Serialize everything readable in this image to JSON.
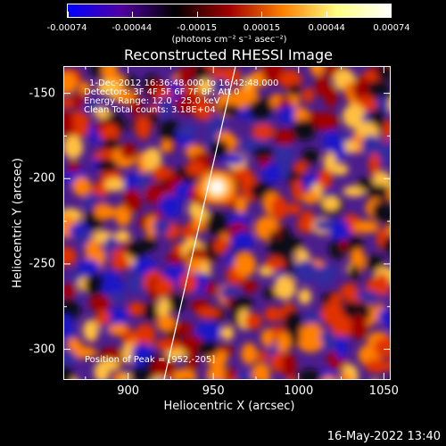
{
  "colorbar": {
    "tick_labels": [
      "-0.00074",
      "-0.00044",
      "-0.00015",
      "0.00015",
      "0.00044",
      "0.00074"
    ],
    "units_label": "(photons cm⁻² s⁻¹ asec⁻²)",
    "colors": [
      "#0000ff",
      "#5000a0",
      "#000000",
      "#a00000",
      "#ff8000",
      "#ffff80",
      "#ffffff"
    ]
  },
  "chart_data": {
    "type": "heatmap",
    "title": "Reconstructed RHESSI Image",
    "xlabel": "Heliocentric X (arcsec)",
    "ylabel": "Heliocentric Y (arcsec)",
    "xlim": [
      862,
      1054
    ],
    "ylim": [
      -318,
      -134
    ],
    "xticks": [
      900,
      950,
      1000,
      1050
    ],
    "yticks": [
      -150,
      -200,
      -250,
      -300
    ],
    "colormap_range": [
      -0.00074,
      0.00074
    ],
    "peak": [
      952,
      -205
    ],
    "annotations": [
      "1-Dec-2012 16:36:48.000 to 16:42:48.000",
      "Detectors: 3F 4F 5F 6F 7F 8F; Att 0",
      "Energy Range: 12.0 - 25.0 keV",
      "Clean     Total counts: 3.18E+04"
    ],
    "peak_label": "Position of Peak = [952,-205]",
    "limb_line": [
      [
        921,
        -318
      ],
      [
        963,
        -134
      ]
    ]
  },
  "timestamp": "16-May-2022 13:40"
}
